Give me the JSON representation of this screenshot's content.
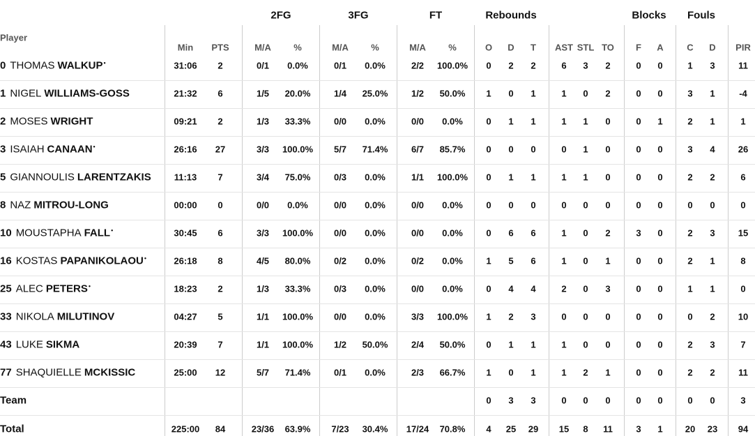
{
  "table": {
    "groups": [
      "2FG",
      "3FG",
      "FT",
      "Rebounds",
      "Blocks",
      "Fouls"
    ],
    "player_header": "Player",
    "columns": [
      "Min",
      "PTS",
      "M/A",
      "%",
      "M/A",
      "%",
      "M/A",
      "%",
      "O",
      "D",
      "T",
      "AST",
      "STL",
      "TO",
      "F",
      "A",
      "C",
      "D",
      "PIR"
    ],
    "rows": [
      {
        "number": "0",
        "first": "THOMAS",
        "last": "WALKUP",
        "mark": "•",
        "stats": [
          "31:06",
          "2",
          "0/1",
          "0.0%",
          "0/1",
          "0.0%",
          "2/2",
          "100.0%",
          "0",
          "2",
          "2",
          "6",
          "3",
          "2",
          "0",
          "0",
          "1",
          "3",
          "11"
        ]
      },
      {
        "number": "1",
        "first": "NIGEL",
        "last": "WILLIAMS-GOSS",
        "stats": [
          "21:32",
          "6",
          "1/5",
          "20.0%",
          "1/4",
          "25.0%",
          "1/2",
          "50.0%",
          "1",
          "0",
          "1",
          "1",
          "0",
          "2",
          "0",
          "0",
          "3",
          "1",
          "-4"
        ]
      },
      {
        "number": "2",
        "first": "MOSES",
        "last": "WRIGHT",
        "stats": [
          "09:21",
          "2",
          "1/3",
          "33.3%",
          "0/0",
          "0.0%",
          "0/0",
          "0.0%",
          "0",
          "1",
          "1",
          "1",
          "1",
          "0",
          "0",
          "1",
          "2",
          "1",
          "1"
        ]
      },
      {
        "number": "3",
        "first": "ISAIAH",
        "last": "CANAAN",
        "mark": "•",
        "stats": [
          "26:16",
          "27",
          "3/3",
          "100.0%",
          "5/7",
          "71.4%",
          "6/7",
          "85.7%",
          "0",
          "0",
          "0",
          "0",
          "1",
          "0",
          "0",
          "0",
          "3",
          "4",
          "26"
        ]
      },
      {
        "number": "5",
        "first": "GIANNOULIS",
        "last": "LARENTZAKIS",
        "stats": [
          "11:13",
          "7",
          "3/4",
          "75.0%",
          "0/3",
          "0.0%",
          "1/1",
          "100.0%",
          "0",
          "1",
          "1",
          "1",
          "1",
          "0",
          "0",
          "0",
          "2",
          "2",
          "6"
        ]
      },
      {
        "number": "8",
        "first": "NAZ",
        "last": "MITROU-LONG",
        "stats": [
          "00:00",
          "0",
          "0/0",
          "0.0%",
          "0/0",
          "0.0%",
          "0/0",
          "0.0%",
          "0",
          "0",
          "0",
          "0",
          "0",
          "0",
          "0",
          "0",
          "0",
          "0",
          "0"
        ]
      },
      {
        "number": "10",
        "first": "MOUSTAPHA",
        "last": "FALL",
        "mark": "•",
        "stats": [
          "30:45",
          "6",
          "3/3",
          "100.0%",
          "0/0",
          "0.0%",
          "0/0",
          "0.0%",
          "0",
          "6",
          "6",
          "1",
          "0",
          "2",
          "3",
          "0",
          "2",
          "3",
          "15"
        ]
      },
      {
        "number": "16",
        "first": "KOSTAS",
        "last": "PAPANIKOLAOU",
        "mark": "•",
        "stats": [
          "26:18",
          "8",
          "4/5",
          "80.0%",
          "0/2",
          "0.0%",
          "0/2",
          "0.0%",
          "1",
          "5",
          "6",
          "1",
          "0",
          "1",
          "0",
          "0",
          "2",
          "1",
          "8"
        ]
      },
      {
        "number": "25",
        "first": "ALEC",
        "last": "PETERS",
        "mark": "•",
        "stats": [
          "18:23",
          "2",
          "1/3",
          "33.3%",
          "0/3",
          "0.0%",
          "0/0",
          "0.0%",
          "0",
          "4",
          "4",
          "2",
          "0",
          "3",
          "0",
          "0",
          "1",
          "1",
          "0"
        ]
      },
      {
        "number": "33",
        "first": "NIKOLA",
        "last": "MILUTINOV",
        "stats": [
          "04:27",
          "5",
          "1/1",
          "100.0%",
          "0/0",
          "0.0%",
          "3/3",
          "100.0%",
          "1",
          "2",
          "3",
          "0",
          "0",
          "0",
          "0",
          "0",
          "0",
          "2",
          "10"
        ]
      },
      {
        "number": "43",
        "first": "LUKE",
        "last": "SIKMA",
        "stats": [
          "20:39",
          "7",
          "1/1",
          "100.0%",
          "1/2",
          "50.0%",
          "2/4",
          "50.0%",
          "0",
          "1",
          "1",
          "1",
          "0",
          "0",
          "0",
          "0",
          "2",
          "3",
          "7"
        ]
      },
      {
        "number": "77",
        "first": "SHAQUIELLE",
        "last": "MCKISSIC",
        "stats": [
          "25:00",
          "12",
          "5/7",
          "71.4%",
          "0/1",
          "0.0%",
          "2/3",
          "66.7%",
          "1",
          "0",
          "1",
          "1",
          "2",
          "1",
          "0",
          "0",
          "2",
          "2",
          "11"
        ]
      }
    ],
    "team": {
      "label": "Team",
      "stats": [
        null,
        null,
        null,
        null,
        null,
        null,
        null,
        null,
        "0",
        "3",
        "3",
        "0",
        "0",
        "0",
        "0",
        "0",
        "0",
        "0",
        "3"
      ]
    },
    "total": {
      "label": "Total",
      "stats": [
        "225:00",
        "84",
        "23/36",
        "63.9%",
        "7/23",
        "30.4%",
        "17/24",
        "70.8%",
        "4",
        "25",
        "29",
        "15",
        "8",
        "11",
        "3",
        "1",
        "20",
        "23",
        "94"
      ]
    }
  }
}
